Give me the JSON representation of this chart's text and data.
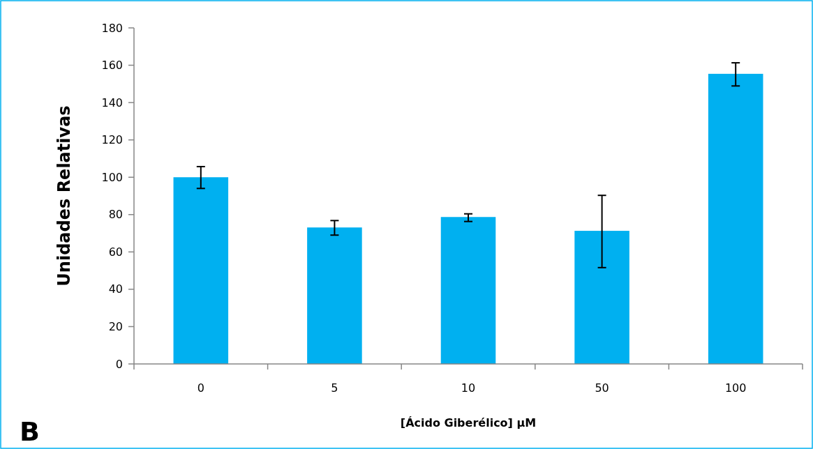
{
  "chart_data": {
    "type": "bar",
    "categories": [
      "0",
      "5",
      "10",
      "50",
      "100"
    ],
    "values": [
      100,
      73.1,
      78.7,
      71.3,
      155.4
    ],
    "errors": [
      [
        94,
        105.7
      ],
      [
        69,
        76.8
      ],
      [
        76.3,
        80.4
      ],
      [
        51.6,
        90.3
      ],
      [
        148.9,
        161.3
      ]
    ],
    "color": "#00b0f0",
    "ylim": [
      0,
      180
    ],
    "yticks": [
      0,
      20,
      40,
      60,
      80,
      100,
      120,
      140,
      160,
      180
    ],
    "xlabel": "[Ácido Giberélico] µM",
    "ylabel": "Unidades Relativas",
    "annotations": [
      "B"
    ],
    "grid": false
  }
}
